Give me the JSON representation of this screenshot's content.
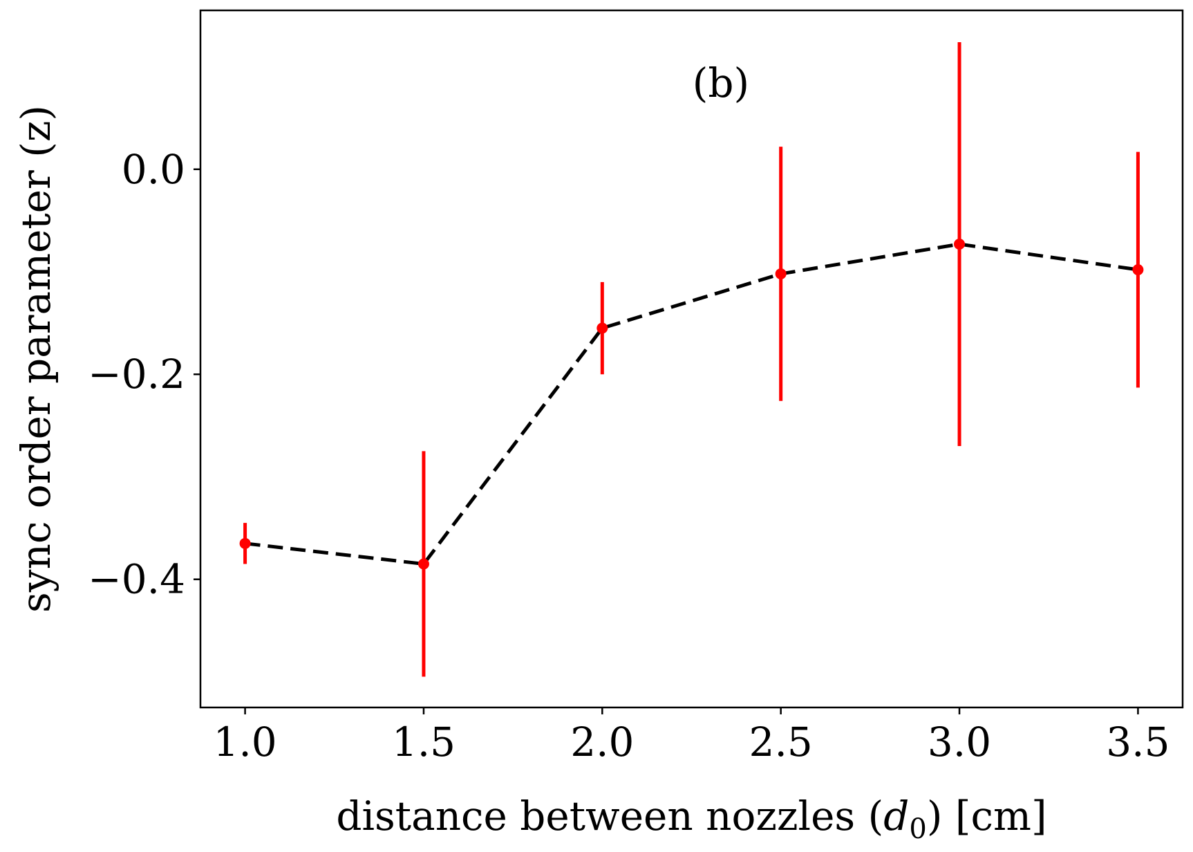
{
  "chart_data": {
    "type": "line",
    "panel_label": "(b)",
    "xlabel": "distance between nozzles (d0) [cm]",
    "xlabel_parts": {
      "prefix": "distance between nozzles (",
      "var": "d",
      "sub": "0",
      "suffix": ") [cm]"
    },
    "ylabel": "sync order parameter (z)",
    "x": [
      1.0,
      1.5,
      2.0,
      2.5,
      3.0,
      3.5
    ],
    "y": [
      -0.365,
      -0.385,
      -0.155,
      -0.102,
      -0.073,
      -0.098
    ],
    "yerr": [
      0.02,
      0.11,
      0.045,
      0.124,
      0.197,
      0.115
    ],
    "xlim": [
      0.875,
      3.625
    ],
    "ylim": [
      -0.525,
      0.155
    ],
    "xticks": [
      1.0,
      1.5,
      2.0,
      2.5,
      3.0,
      3.5
    ],
    "xtick_labels": [
      "1.0",
      "1.5",
      "2.0",
      "2.5",
      "3.0",
      "3.5"
    ],
    "yticks": [
      0.0,
      -0.2,
      -0.4
    ],
    "ytick_labels": [
      "0.0",
      "−0.2",
      "−0.4"
    ],
    "line_style": "dashed",
    "line_color": "#000000",
    "marker_color": "#ff0000",
    "errorbar_color": "#ff0000",
    "grid": false,
    "legend": "none"
  }
}
